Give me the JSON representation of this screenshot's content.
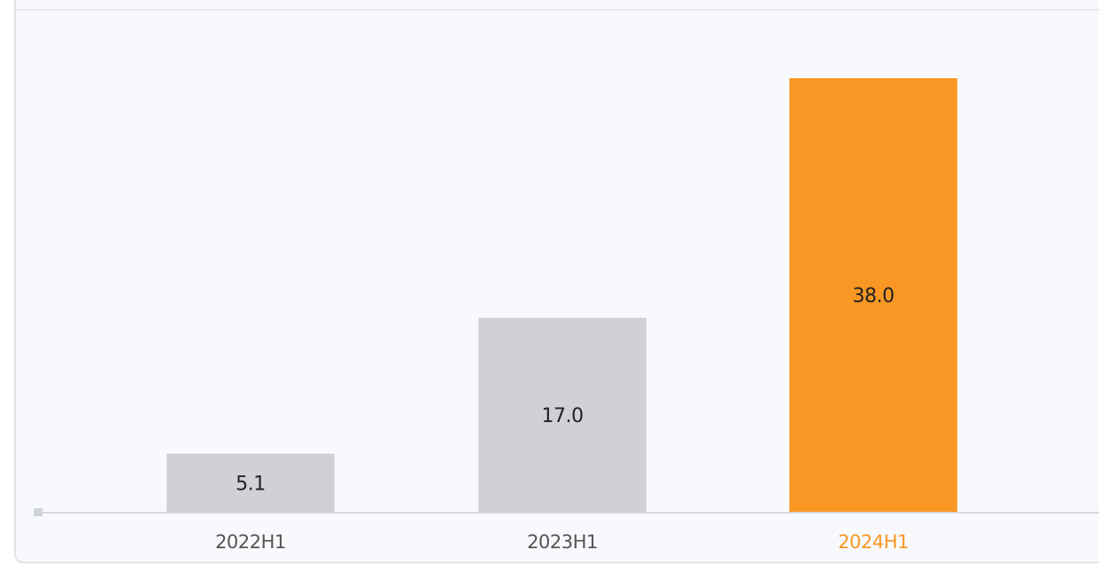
{
  "chart_data": {
    "type": "bar",
    "categories": [
      "2022H1",
      "2023H1",
      "2024H1"
    ],
    "values": [
      5.1,
      17.0,
      38.0
    ],
    "value_labels": [
      "5.1",
      "17.0",
      "38.0"
    ],
    "highlight_index": 2,
    "ylim": [
      0,
      38.0
    ],
    "grid": false,
    "colors": {
      "bar": "#d0d1d6",
      "highlight_bar": "#f99724",
      "label": "#222222",
      "tick": "#555555",
      "highlight_tick": "#f99724",
      "axis": "#d6d8e0"
    }
  }
}
